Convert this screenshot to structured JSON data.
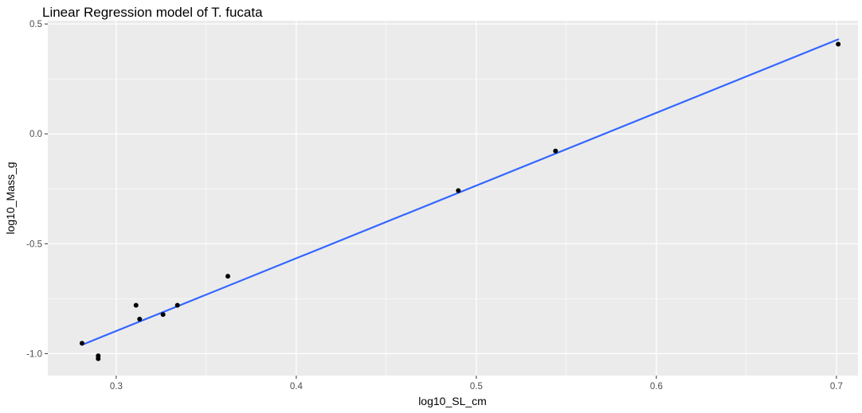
{
  "chart_data": {
    "type": "scatter",
    "title": "Linear Regression model of T. fucata",
    "xlabel": "log10_SL_cm",
    "ylabel": "log10_Mass_g",
    "xlim": [
      0.262,
      0.712
    ],
    "ylim": [
      -1.1,
      0.515
    ],
    "x_ticks": [
      0.3,
      0.4,
      0.5,
      0.6,
      0.7
    ],
    "x_tick_labels": [
      "0.3",
      "0.4",
      "0.5",
      "0.6",
      "0.7"
    ],
    "y_ticks": [
      -1.0,
      -0.5,
      0.0,
      0.5
    ],
    "y_tick_labels": [
      "-1.0",
      "-0.5",
      "0.0",
      "0.5"
    ],
    "grid": true,
    "legend": "none",
    "colors": {
      "panel_background": "#ebebeb",
      "grid_line": "#ffffff",
      "point": "#000000",
      "fit_line": "#3366ff"
    },
    "series": [
      {
        "kind": "points",
        "x": [
          0.281,
          0.29,
          0.29,
          0.311,
          0.313,
          0.326,
          0.334,
          0.362,
          0.49,
          0.544,
          0.701
        ],
        "y": [
          -0.953,
          -1.01,
          -1.023,
          -0.78,
          -0.843,
          -0.822,
          -0.78,
          -0.648,
          -0.258,
          -0.078,
          0.408
        ]
      },
      {
        "kind": "regression_line",
        "x": [
          0.281,
          0.701
        ],
        "y": [
          -0.96,
          0.43
        ]
      }
    ]
  }
}
